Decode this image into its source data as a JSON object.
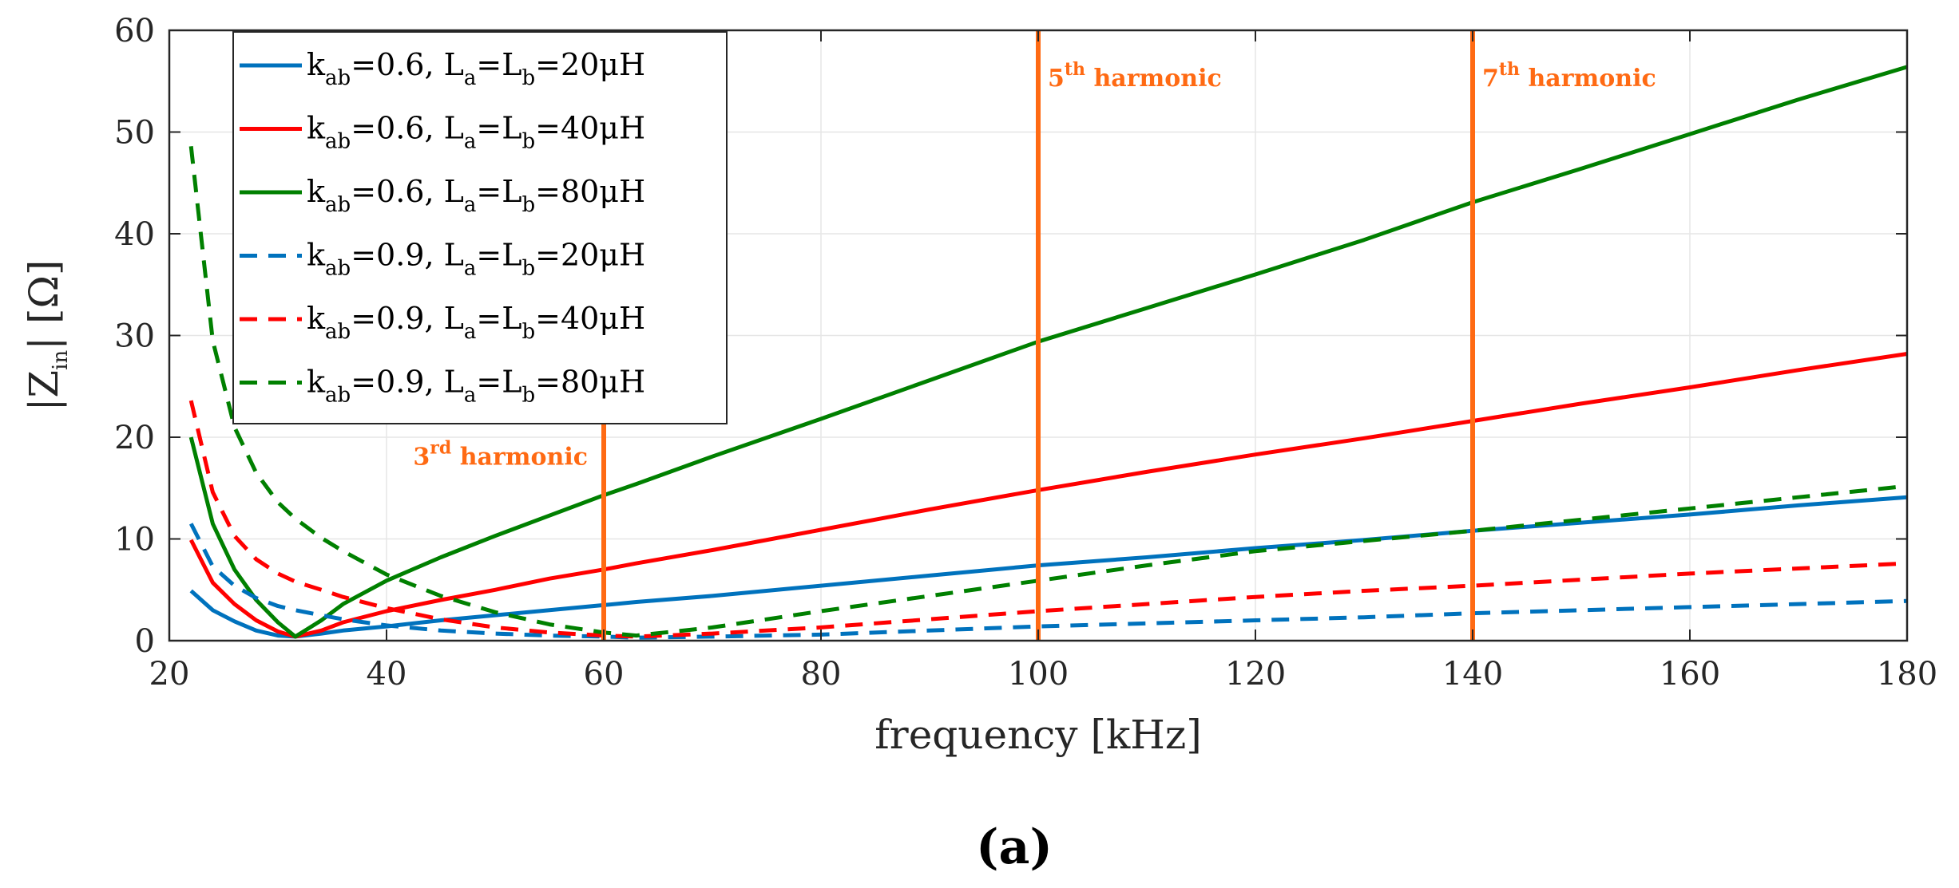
{
  "chart_data": {
    "type": "line",
    "xlabel": "frequency [kHz]",
    "ylabel": {
      "pre": "|Z",
      "sub": "in",
      "post": "| [Ω]"
    },
    "xlim": [
      20,
      180
    ],
    "ylim": [
      0,
      60
    ],
    "xticks": [
      20,
      40,
      60,
      80,
      100,
      120,
      140,
      160,
      180
    ],
    "yticks": [
      0,
      10,
      20,
      30,
      40,
      50,
      60
    ],
    "grid": true,
    "legend_position": "top-left",
    "x": [
      22,
      24,
      26,
      28,
      30,
      31.6,
      34,
      36,
      40,
      45,
      50,
      55,
      60,
      63,
      70,
      80,
      90,
      100,
      110,
      120,
      130,
      140,
      150,
      160,
      170,
      180
    ],
    "series": [
      {
        "name": "k_ab=0.6, L_a=L_b=20μH",
        "legend": {
          "k": "k",
          "ksub": "ab",
          "kval": "=0.6, L",
          "l1sub": "a",
          "mid": "=L",
          "l2sub": "b",
          "tail": "=20μH"
        },
        "color": "#0072BD",
        "dash": "solid",
        "values": [
          4.9,
          3.0,
          1.9,
          1.0,
          0.5,
          0.4,
          0.7,
          1.0,
          1.4,
          2.0,
          2.5,
          3.0,
          3.5,
          3.8,
          4.4,
          5.4,
          6.4,
          7.4,
          8.2,
          9.1,
          9.9,
          10.8,
          11.6,
          12.4,
          13.3,
          14.1
        ]
      },
      {
        "name": "k_ab=0.6, L_a=L_b=40μH",
        "legend": {
          "k": "k",
          "ksub": "ab",
          "kval": "=0.6, L",
          "l1sub": "a",
          "mid": "=L",
          "l2sub": "b",
          "tail": "=40μH"
        },
        "color": "#FF0000",
        "dash": "solid",
        "values": [
          9.9,
          5.7,
          3.6,
          2.0,
          0.9,
          0.4,
          1.0,
          1.8,
          2.9,
          4.0,
          5.0,
          6.1,
          7.0,
          7.6,
          8.9,
          10.9,
          12.9,
          14.8,
          16.6,
          18.3,
          19.9,
          21.6,
          23.3,
          24.9,
          26.6,
          28.2
        ]
      },
      {
        "name": "k_ab=0.6, L_a=L_b=80μH",
        "legend": {
          "k": "k",
          "ksub": "ab",
          "kval": "=0.6, L",
          "l1sub": "a",
          "mid": "=L",
          "l2sub": "b",
          "tail": "=80μH"
        },
        "color": "#008000",
        "dash": "solid",
        "values": [
          20.0,
          11.5,
          7.0,
          4.0,
          1.8,
          0.4,
          2.0,
          3.6,
          5.9,
          8.2,
          10.3,
          12.3,
          14.3,
          15.4,
          18.1,
          21.8,
          25.6,
          29.4,
          32.7,
          36.0,
          39.4,
          43.1,
          46.4,
          49.8,
          53.2,
          56.4
        ]
      },
      {
        "name": "k_ab=0.9, L_a=L_b=20μH",
        "legend": {
          "k": "k",
          "ksub": "ab",
          "kval": "=0.9, L",
          "l1sub": "a",
          "mid": "=L",
          "l2sub": "b",
          "tail": "=20μH"
        },
        "color": "#0072BD",
        "dash": "dashed",
        "values": [
          11.5,
          7.3,
          5.4,
          4.2,
          3.4,
          3.0,
          2.5,
          2.1,
          1.5,
          1.0,
          0.7,
          0.5,
          0.4,
          0.3,
          0.4,
          0.6,
          1.0,
          1.4,
          1.7,
          2.0,
          2.3,
          2.7,
          3.0,
          3.3,
          3.6,
          3.9
        ]
      },
      {
        "name": "k_ab=0.9, L_a=L_b=40μH",
        "legend": {
          "k": "k",
          "ksub": "ab",
          "kval": "=0.9, L",
          "l1sub": "a",
          "mid": "=L",
          "l2sub": "b",
          "tail": "=40μH"
        },
        "color": "#FF0000",
        "dash": "dashed",
        "values": [
          23.6,
          14.6,
          10.3,
          8.0,
          6.6,
          5.8,
          5.0,
          4.3,
          3.2,
          2.1,
          1.3,
          0.8,
          0.5,
          0.4,
          0.7,
          1.3,
          2.1,
          2.9,
          3.6,
          4.3,
          4.9,
          5.4,
          6.0,
          6.6,
          7.1,
          7.6
        ]
      },
      {
        "name": "k_ab=0.9, L_a=L_b=80μH",
        "legend": {
          "k": "k",
          "ksub": "ab",
          "kval": "=0.9, L",
          "l1sub": "a",
          "mid": "=L",
          "l2sub": "b",
          "tail": "=80μH"
        },
        "color": "#008000",
        "dash": "dashed",
        "values": [
          48.6,
          29.5,
          21.0,
          16.5,
          13.6,
          12.0,
          10.1,
          8.8,
          6.5,
          4.4,
          2.8,
          1.6,
          0.8,
          0.5,
          1.3,
          2.9,
          4.4,
          5.9,
          7.4,
          8.8,
          9.8,
          10.8,
          11.9,
          13.0,
          14.1,
          15.2
        ]
      }
    ],
    "annotations": [
      {
        "x": 60,
        "label": {
          "n": "3",
          "sup": "rd",
          "text": " harmonic"
        },
        "color": "#FF6A13",
        "y_top": 21.3,
        "label_y": 17.3,
        "align": "left"
      },
      {
        "x": 100,
        "label": {
          "n": "5",
          "sup": "th",
          "text": " harmonic"
        },
        "color": "#FF6A13",
        "y_top": 60,
        "label_y": 54.5,
        "align": "right"
      },
      {
        "x": 140,
        "label": {
          "n": "7",
          "sup": "th",
          "text": " harmonic"
        },
        "color": "#FF6A13",
        "y_top": 60,
        "label_y": 54.5,
        "align": "right"
      }
    ],
    "caption": "(a)"
  }
}
